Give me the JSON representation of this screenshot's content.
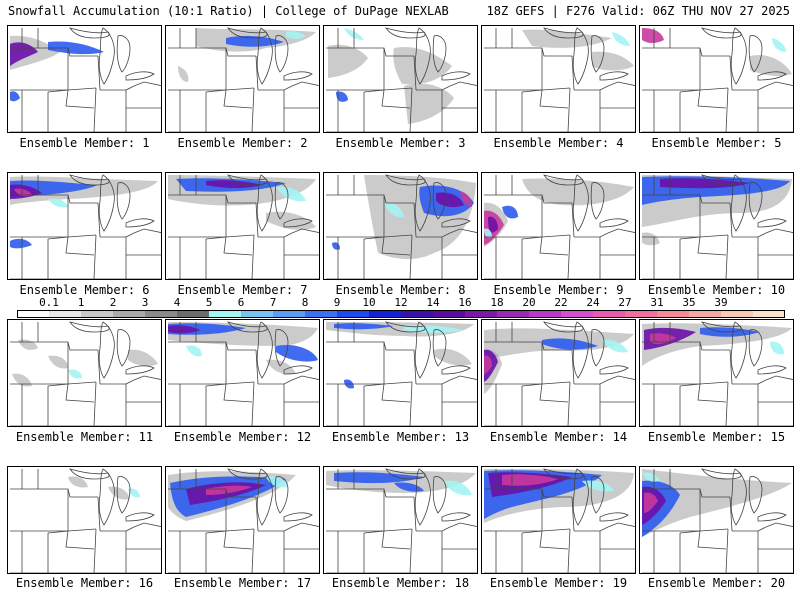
{
  "header": {
    "title": "Snowfall Accumulation (10:1 Ratio) | College of DuPage NEXLAB",
    "run": "18Z GEFS | F276 Valid: 06Z THU NOV 27 2025"
  },
  "member_label_prefix": "Ensemble Member: ",
  "members": [
    1,
    2,
    3,
    4,
    5,
    6,
    7,
    8,
    9,
    10,
    11,
    12,
    13,
    14,
    15,
    16,
    17,
    18,
    19,
    20
  ],
  "colorbar": {
    "ticks": [
      "0.1",
      "1",
      "2",
      "3",
      "4",
      "5",
      "6",
      "7",
      "8",
      "9",
      "10",
      "12",
      "14",
      "16",
      "18",
      "20",
      "22",
      "24",
      "27",
      "31",
      "35",
      "39"
    ],
    "colors": [
      "#ffffff",
      "#e6e6e6",
      "#c8c8c8",
      "#a9a9a9",
      "#8a8a8a",
      "#6c6c6c",
      "#a4f4f4",
      "#78c4f0",
      "#5c9cf2",
      "#3d6ff0",
      "#2048f0",
      "#1520d8",
      "#3a10a8",
      "#5a0c9c",
      "#7a1aa8",
      "#9a2ab4",
      "#ba3ac4",
      "#d84ed0",
      "#e85cb0",
      "#f070a0",
      "#f28a9a",
      "#f4aaa4",
      "#f8cab4",
      "#fbe0cc"
    ]
  },
  "palette": {
    "frame": "#000000",
    "map_lines": "#444444",
    "gray_light": "#d9d9d9",
    "gray_mid": "#a0a0a0",
    "gray_dark": "#707070",
    "cyan": "#a4f4f4",
    "blue_light": "#6aa8f0",
    "blue": "#2c5cf0",
    "blue_dark": "#1a28d8",
    "purple": "#6a10a8",
    "magenta": "#c8389c",
    "pink": "#e070a8"
  }
}
